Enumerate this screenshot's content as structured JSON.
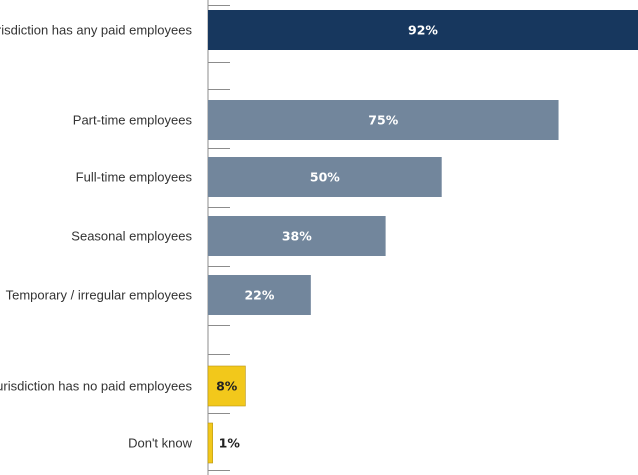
{
  "chart_data": {
    "type": "bar",
    "orientation": "horizontal",
    "categories": [
      "Jurisdiction has any paid employees",
      "Part-time employees",
      "Full-time employees",
      "Seasonal employees",
      "Temporary / irregular employees",
      "Jurisdiction has no paid employees",
      "Don't know"
    ],
    "values": [
      92,
      75,
      50,
      38,
      22,
      8,
      1
    ],
    "value_labels": [
      "92%",
      "75%",
      "50%",
      "38%",
      "22%",
      "8%",
      "1%"
    ],
    "unit": "%",
    "xlim": [
      0,
      92
    ],
    "grid": false,
    "legend": "none",
    "title": "",
    "xlabel": "",
    "ylabel": "",
    "colors": {
      "primary": "#17375e",
      "subcategory": "#72869c",
      "other": "#f2c81b",
      "label_light": "#ffffff",
      "label_dark": "#222222",
      "axis": "#8c8c8c"
    }
  }
}
